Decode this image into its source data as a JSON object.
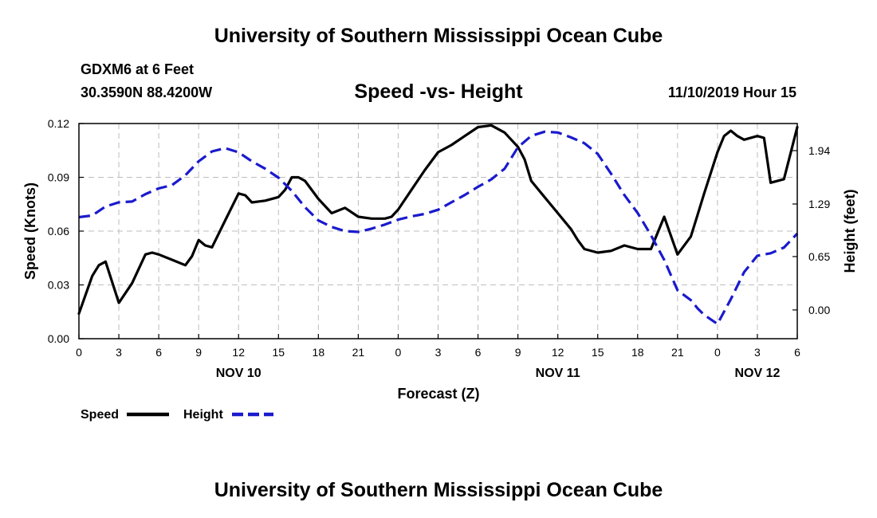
{
  "header": {
    "top_title": "University of Southern Mississippi Ocean Cube",
    "bottom_title": "University of Southern Mississippi Ocean Cube",
    "station": "GDXM6 at 6 Feet",
    "coords": "30.3590N 88.4200W",
    "plot_title": "Speed -vs- Height",
    "valid_time": "11/10/2019 Hour 15"
  },
  "legend": {
    "speed_label": "Speed",
    "height_label": "Height"
  },
  "chart_data": {
    "type": "line",
    "title": "Speed -vs- Height",
    "xlabel": "Forecast (Z)",
    "ylabel_left": "Speed (Knots)",
    "ylabel_right": "Height (feet)",
    "x_range_hours": [
      0,
      54
    ],
    "x_ticks": [
      "0",
      "3",
      "6",
      "9",
      "12",
      "15",
      "18",
      "21",
      "0",
      "3",
      "6",
      "9",
      "12",
      "15",
      "18",
      "21",
      "0",
      "3",
      "6"
    ],
    "date_labels": [
      {
        "label": "NOV 10",
        "hour": 12
      },
      {
        "label": "NOV 11",
        "hour": 36
      },
      {
        "label": "NOV 12",
        "hour": 51
      }
    ],
    "y_left": {
      "range": [
        0,
        0.12
      ],
      "ticks": [
        "0.00",
        "0.03",
        "0.06",
        "0.09",
        "0.12"
      ],
      "tick_values": [
        0,
        0.03,
        0.06,
        0.09,
        0.12
      ]
    },
    "y_right": {
      "range": [
        -0.35,
        2.27
      ],
      "ticks": [
        "0.00",
        "0.65",
        "1.29",
        "1.94"
      ],
      "tick_values": [
        0.0,
        0.65,
        1.29,
        1.94
      ]
    },
    "grid": true,
    "legend_position": "bottom-left",
    "series": [
      {
        "name": "Speed",
        "axis": "left",
        "color": "#000000",
        "style": "solid",
        "x": [
          0,
          1,
          1.5,
          2,
          3,
          4,
          5,
          5.5,
          6,
          7,
          8,
          8.5,
          9,
          9.5,
          10,
          11,
          12,
          12.5,
          13,
          14,
          15,
          15.5,
          16,
          16.5,
          17,
          18,
          19,
          20,
          21,
          22,
          23,
          23.5,
          24,
          25,
          26,
          27,
          28,
          29,
          30,
          31,
          32,
          33,
          33.5,
          34,
          35,
          36,
          37,
          37.5,
          38,
          39,
          40,
          41,
          42,
          43,
          44,
          45,
          46,
          46.5,
          47,
          48,
          48.5,
          49,
          49.5,
          50,
          51,
          51.5,
          52,
          53,
          54
        ],
        "values": [
          0.014,
          0.035,
          0.041,
          0.043,
          0.02,
          0.031,
          0.047,
          0.048,
          0.047,
          0.044,
          0.041,
          0.046,
          0.055,
          0.052,
          0.051,
          0.066,
          0.081,
          0.08,
          0.076,
          0.077,
          0.079,
          0.083,
          0.09,
          0.09,
          0.088,
          0.078,
          0.07,
          0.073,
          0.068,
          0.067,
          0.067,
          0.068,
          0.072,
          0.083,
          0.094,
          0.104,
          0.108,
          0.113,
          0.118,
          0.119,
          0.115,
          0.107,
          0.1,
          0.088,
          0.079,
          0.07,
          0.061,
          0.055,
          0.05,
          0.048,
          0.049,
          0.052,
          0.05,
          0.05,
          0.068,
          0.047,
          0.057,
          0.069,
          0.081,
          0.104,
          0.113,
          0.116,
          0.113,
          0.111,
          0.113,
          0.112,
          0.087,
          0.089,
          0.118
        ]
      },
      {
        "name": "Height",
        "axis": "right",
        "color": "#1a1acd",
        "style": "dashed",
        "x": [
          0,
          1,
          2,
          3,
          4,
          5,
          6,
          7,
          8,
          9,
          10,
          11,
          12,
          13,
          14,
          15,
          16,
          17,
          18,
          19,
          20,
          21,
          22,
          23,
          24,
          25,
          26,
          27,
          28,
          29,
          30,
          31,
          32,
          33,
          34,
          35,
          36,
          37,
          38,
          39,
          40,
          41,
          42,
          43,
          44,
          45,
          46,
          46.5,
          47,
          48,
          49,
          50,
          51,
          52,
          53,
          54
        ],
        "values": [
          1.13,
          1.15,
          1.26,
          1.31,
          1.32,
          1.41,
          1.48,
          1.52,
          1.64,
          1.81,
          1.93,
          1.97,
          1.92,
          1.81,
          1.72,
          1.61,
          1.45,
          1.25,
          1.09,
          1.01,
          0.96,
          0.95,
          0.99,
          1.04,
          1.1,
          1.14,
          1.17,
          1.22,
          1.31,
          1.4,
          1.5,
          1.59,
          1.72,
          1.98,
          2.12,
          2.17,
          2.16,
          2.1,
          2.03,
          1.9,
          1.66,
          1.4,
          1.18,
          0.91,
          0.61,
          0.24,
          0.12,
          0.02,
          -0.06,
          -0.17,
          0.13,
          0.46,
          0.66,
          0.69,
          0.76,
          0.93
        ]
      }
    ]
  }
}
